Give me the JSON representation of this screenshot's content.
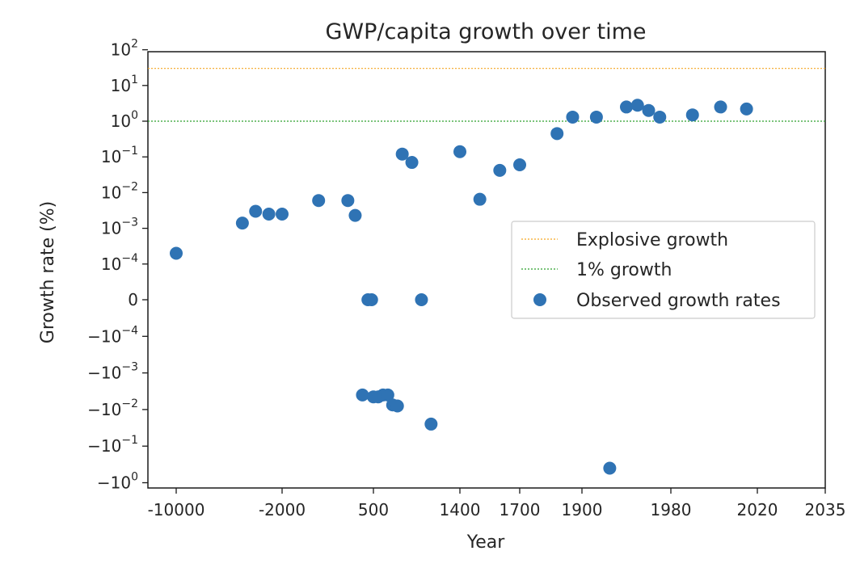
{
  "chart_data": {
    "type": "scatter",
    "title": "GWP/capita growth over time",
    "xlabel": "Year",
    "ylabel": "Growth rate (%)",
    "x_scale": "piecewise-linear (each labeled interval equal width)",
    "y_scale": "symlog",
    "x_ticks": [
      {
        "value": -10000,
        "label": "-10000"
      },
      {
        "value": -2000,
        "label": "-2000"
      },
      {
        "value": 500,
        "label": "500"
      },
      {
        "value": 1400,
        "label": "1400"
      },
      {
        "value": 1700,
        "label": "1700"
      },
      {
        "value": 1900,
        "label": "1900"
      },
      {
        "value": 1980,
        "label": "1980"
      },
      {
        "value": 2020,
        "label": "2020"
      },
      {
        "value": 2035,
        "label": "2035"
      }
    ],
    "y_ticks": [
      {
        "value": 100,
        "base": "10",
        "exp": "2"
      },
      {
        "value": 10,
        "base": "10",
        "exp": "1"
      },
      {
        "value": 1,
        "base": "10",
        "exp": "0"
      },
      {
        "value": 0.1,
        "base": "10",
        "exp": "−1"
      },
      {
        "value": 0.01,
        "base": "10",
        "exp": "−2"
      },
      {
        "value": 0.001,
        "base": "10",
        "exp": "−3"
      },
      {
        "value": 0.0001,
        "base": "10",
        "exp": "−4"
      },
      {
        "value": 0,
        "base": "0",
        "exp": ""
      },
      {
        "value": -0.0001,
        "base": "−10",
        "exp": "−4"
      },
      {
        "value": -0.001,
        "base": "−10",
        "exp": "−3"
      },
      {
        "value": -0.01,
        "base": "−10",
        "exp": "−2"
      },
      {
        "value": -0.1,
        "base": "−10",
        "exp": "−1"
      },
      {
        "value": -1,
        "base": "−10",
        "exp": "0"
      }
    ],
    "reference_lines": [
      {
        "name": "Explosive growth",
        "y": 30,
        "color": "#f5a623",
        "style": "dotted"
      },
      {
        "name": "1% growth",
        "y": 1,
        "color": "#2ca02c",
        "style": "dotted"
      }
    ],
    "series": [
      {
        "name": "Observed growth rates",
        "color": "#2f73b4",
        "points": [
          {
            "x": -10000,
            "y": 0.0002
          },
          {
            "x": -5000,
            "y": 0.0014
          },
          {
            "x": -4000,
            "y": 0.003
          },
          {
            "x": -3000,
            "y": 0.0025
          },
          {
            "x": -2000,
            "y": 0.0025
          },
          {
            "x": -1000,
            "y": 0.006
          },
          {
            "x": -200,
            "y": 0.006
          },
          {
            "x": 1,
            "y": 0.0023
          },
          {
            "x": 200,
            "y": -0.004
          },
          {
            "x": 350,
            "y": 0
          },
          {
            "x": 450,
            "y": 0
          },
          {
            "x": 500,
            "y": -0.0045
          },
          {
            "x": 550,
            "y": -0.0045
          },
          {
            "x": 600,
            "y": -0.004
          },
          {
            "x": 650,
            "y": -0.004
          },
          {
            "x": 700,
            "y": -0.0075
          },
          {
            "x": 750,
            "y": -0.008
          },
          {
            "x": 800,
            "y": 0.12
          },
          {
            "x": 900,
            "y": 0.07
          },
          {
            "x": 1000,
            "y": 0
          },
          {
            "x": 1100,
            "y": -0.025
          },
          {
            "x": 1400,
            "y": 0.14
          },
          {
            "x": 1500,
            "y": 0.0065
          },
          {
            "x": 1600,
            "y": 0.042
          },
          {
            "x": 1700,
            "y": 0.06
          },
          {
            "x": 1820,
            "y": 0.45
          },
          {
            "x": 1870,
            "y": 1.3
          },
          {
            "x": 1913,
            "y": 1.3
          },
          {
            "x": 1925,
            "y": -0.4
          },
          {
            "x": 1940,
            "y": 2.5
          },
          {
            "x": 1950,
            "y": 2.8
          },
          {
            "x": 1960,
            "y": 2.0
          },
          {
            "x": 1970,
            "y": 1.3
          },
          {
            "x": 1990,
            "y": 1.5
          },
          {
            "x": 2003,
            "y": 2.5
          },
          {
            "x": 2015,
            "y": 2.2
          }
        ]
      }
    ],
    "legend": {
      "position": "center-right",
      "entries": [
        {
          "label": "Explosive growth"
        },
        {
          "label": "1% growth"
        },
        {
          "label": "Observed growth rates"
        }
      ]
    }
  }
}
